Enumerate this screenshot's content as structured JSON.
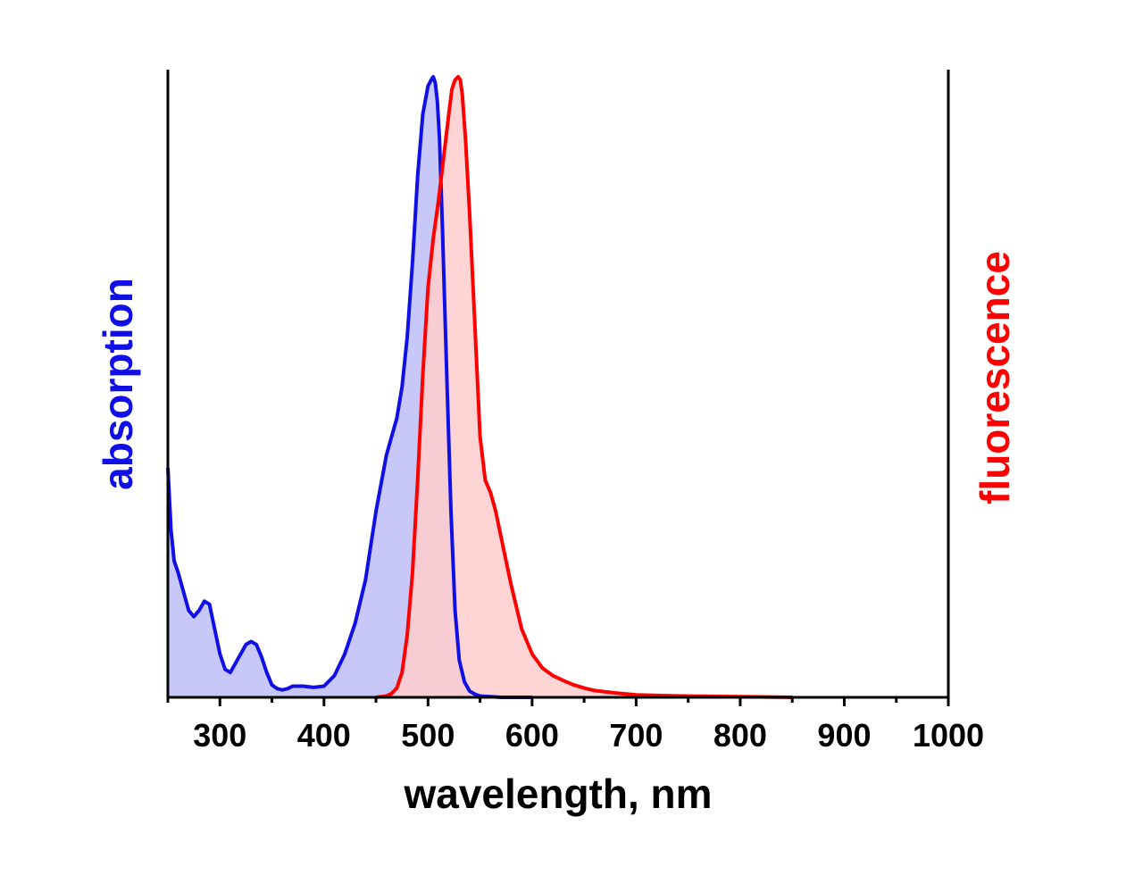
{
  "chart_data": {
    "type": "area",
    "title": "",
    "xlabel": "wavelength, nm",
    "ylabel_left": "absorption",
    "ylabel_right": "fluorescence",
    "xlim": [
      250,
      1000
    ],
    "ylim": [
      0,
      1
    ],
    "x_ticks": [
      300,
      400,
      500,
      600,
      700,
      800,
      900,
      1000
    ],
    "grid": false,
    "legend": "none",
    "colors": {
      "absorption_line": "#1010e6",
      "absorption_fill": "#c8c8f8",
      "fluorescence_line": "#ff0000",
      "fluorescence_fill": "#ffcccc"
    },
    "series": [
      {
        "x": [
          250,
          253,
          256,
          260,
          265,
          270,
          275,
          280,
          285,
          290,
          295,
          300,
          305,
          310,
          315,
          320,
          325,
          330,
          335,
          340,
          345,
          350,
          355,
          360,
          365,
          370,
          380,
          390,
          400,
          410,
          420,
          430,
          440,
          450,
          460,
          465,
          470,
          475,
          480,
          485,
          490,
          495,
          500,
          503,
          505,
          507,
          509,
          511,
          514,
          518,
          522,
          526,
          530,
          535,
          540,
          545,
          550,
          560,
          570,
          580,
          590,
          600
        ],
        "y": [
          0.37,
          0.27,
          0.22,
          0.2,
          0.17,
          0.14,
          0.13,
          0.14,
          0.155,
          0.15,
          0.11,
          0.07,
          0.045,
          0.04,
          0.055,
          0.07,
          0.085,
          0.09,
          0.085,
          0.065,
          0.04,
          0.02,
          0.014,
          0.012,
          0.014,
          0.018,
          0.018,
          0.016,
          0.018,
          0.035,
          0.07,
          0.12,
          0.19,
          0.3,
          0.39,
          0.42,
          0.45,
          0.5,
          0.58,
          0.7,
          0.84,
          0.94,
          0.985,
          0.995,
          1.0,
          0.99,
          0.96,
          0.9,
          0.75,
          0.52,
          0.3,
          0.14,
          0.06,
          0.025,
          0.01,
          0.005,
          0.002,
          0.001,
          0.0,
          0.0,
          0.0,
          0.0
        ]
      },
      {
        "x": [
          450,
          460,
          465,
          470,
          475,
          480,
          485,
          490,
          495,
          500,
          505,
          510,
          515,
          520,
          523,
          526,
          529,
          531,
          533,
          536,
          540,
          545,
          550,
          555,
          560,
          565,
          570,
          575,
          580,
          590,
          600,
          610,
          620,
          630,
          640,
          650,
          660,
          680,
          700,
          720,
          750,
          800,
          850
        ],
        "y": [
          0.0,
          0.002,
          0.006,
          0.015,
          0.04,
          0.1,
          0.2,
          0.35,
          0.52,
          0.66,
          0.74,
          0.8,
          0.87,
          0.94,
          0.98,
          0.995,
          1.0,
          0.995,
          0.97,
          0.9,
          0.78,
          0.6,
          0.42,
          0.35,
          0.33,
          0.3,
          0.26,
          0.22,
          0.18,
          0.11,
          0.07,
          0.047,
          0.035,
          0.027,
          0.02,
          0.015,
          0.011,
          0.007,
          0.004,
          0.003,
          0.002,
          0.001,
          0.0
        ]
      }
    ]
  }
}
